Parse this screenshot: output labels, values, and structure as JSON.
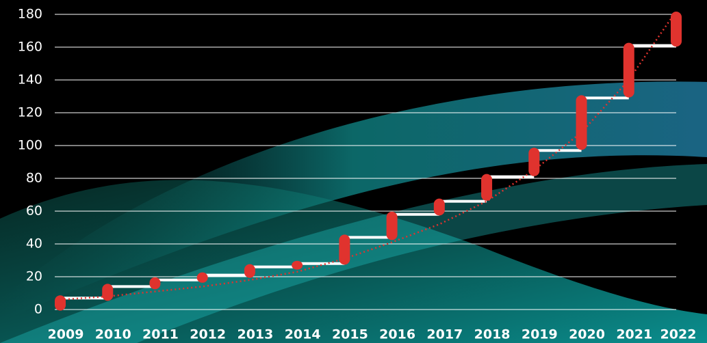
{
  "chart_data": {
    "type": "floating_bar",
    "categories": [
      "2009",
      "2010",
      "2011",
      "2012",
      "2013",
      "2014",
      "2015",
      "2016",
      "2017",
      "2018",
      "2019",
      "2020",
      "2021",
      "2022"
    ],
    "low": [
      1,
      7,
      14,
      18,
      21,
      26,
      29,
      44,
      59,
      68,
      83,
      99,
      131,
      162
    ],
    "high": [
      7,
      14,
      18,
      21,
      26,
      28,
      44,
      58,
      66,
      81,
      97,
      129,
      161,
      180
    ],
    "color": "#e0332e",
    "connector_color": "#ffffff",
    "trendline": {
      "values": [
        6,
        8,
        11,
        14,
        18,
        23,
        31,
        41,
        52,
        66,
        85,
        108,
        140,
        182
      ],
      "color": "#e0332e"
    },
    "ylim": [
      0,
      180
    ],
    "yticks": [
      0,
      20,
      40,
      60,
      80,
      100,
      120,
      140,
      160,
      180
    ],
    "grid": true
  }
}
